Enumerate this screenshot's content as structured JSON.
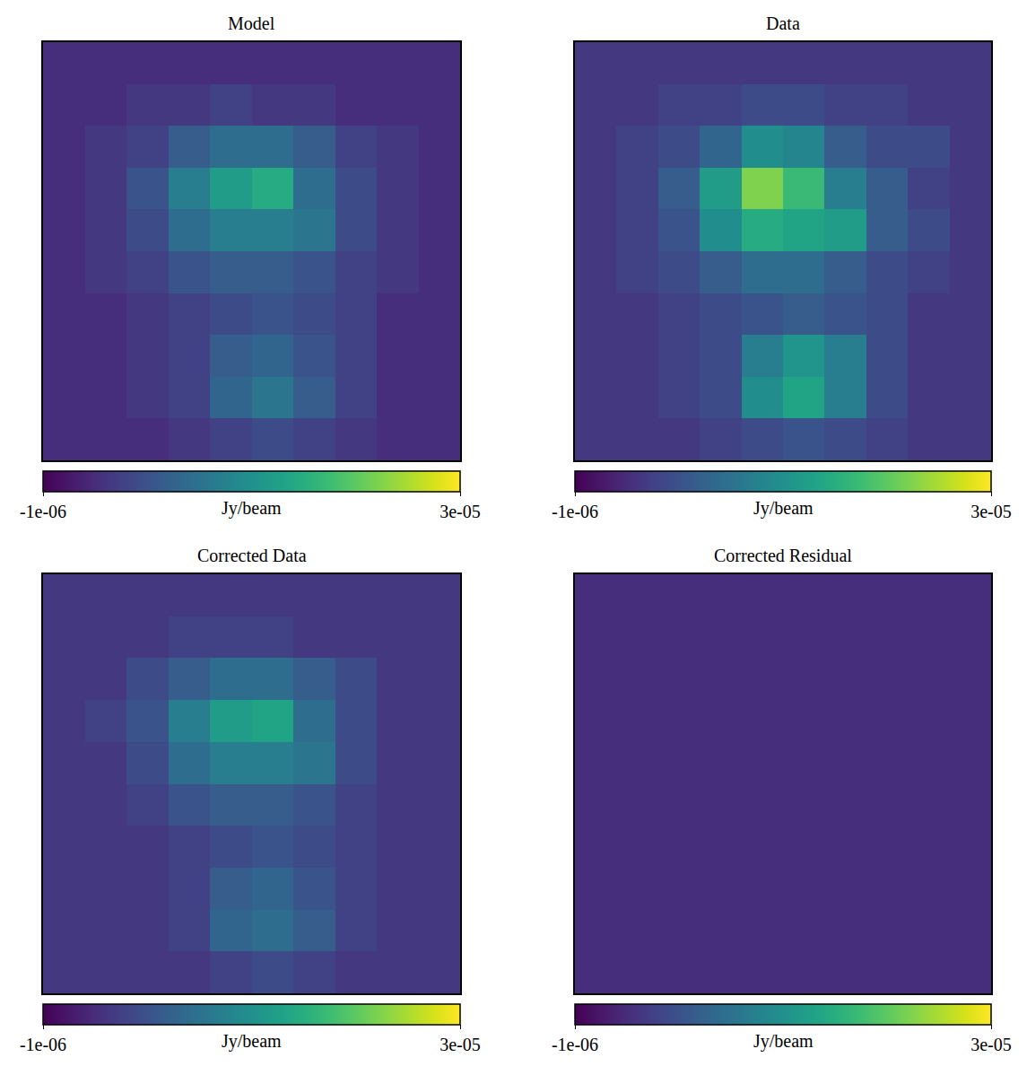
{
  "chart_data": [
    {
      "type": "heatmap",
      "title": "Model",
      "tick_labels": false,
      "zlim": [
        -1e-06,
        3e-05
      ],
      "zticks": [
        {
          "value": -1e-06,
          "label": "-1e-06"
        },
        {
          "value": 3e-05,
          "label": "3e-05"
        }
      ],
      "colorbar_label": "Jy/beam",
      "cells": [
        [
          3e-06,
          3e-06,
          3e-06,
          3e-06,
          3e-06,
          3e-06,
          3e-06,
          3e-06,
          3e-06,
          3e-06
        ],
        [
          3e-06,
          3e-06,
          4e-06,
          4e-06,
          5e-06,
          4e-06,
          4e-06,
          3e-06,
          3e-06,
          3e-06
        ],
        [
          3e-06,
          4e-06,
          5e-06,
          8e-06,
          1e-05,
          1e-05,
          8e-06,
          5e-06,
          4e-06,
          3e-06
        ],
        [
          3e-06,
          4e-06,
          7e-06,
          1.2e-05,
          1.6e-05,
          1.8e-05,
          1e-05,
          6e-06,
          4e-06,
          3e-06
        ],
        [
          3e-06,
          4e-06,
          6e-06,
          1e-05,
          1.2e-05,
          1.2e-05,
          1.1e-05,
          6e-06,
          4e-06,
          3e-06
        ],
        [
          3e-06,
          4e-06,
          5e-06,
          7e-06,
          8e-06,
          8e-06,
          7e-06,
          5e-06,
          4e-06,
          3e-06
        ],
        [
          3e-06,
          3e-06,
          4e-06,
          5e-06,
          6e-06,
          7e-06,
          6e-06,
          5e-06,
          3e-06,
          3e-06
        ],
        [
          3e-06,
          3e-06,
          4e-06,
          5e-06,
          8e-06,
          9e-06,
          7e-06,
          5e-06,
          3e-06,
          3e-06
        ],
        [
          3e-06,
          3e-06,
          4e-06,
          5e-06,
          9e-06,
          1.1e-05,
          8e-06,
          5e-06,
          3e-06,
          3e-06
        ],
        [
          3e-06,
          3e-06,
          3e-06,
          4e-06,
          5e-06,
          6e-06,
          5e-06,
          4e-06,
          3e-06,
          3e-06
        ]
      ]
    },
    {
      "type": "heatmap",
      "title": "Data",
      "tick_labels": false,
      "zlim": [
        -1e-06,
        3e-05
      ],
      "zticks": [
        {
          "value": -1e-06,
          "label": "-1e-06"
        },
        {
          "value": 3e-05,
          "label": "3e-05"
        }
      ],
      "colorbar_label": "Jy/beam",
      "cells": [
        [
          4e-06,
          4e-06,
          4e-06,
          4e-06,
          4e-06,
          4e-06,
          4e-06,
          4e-06,
          4e-06,
          4e-06
        ],
        [
          4e-06,
          4e-06,
          5e-06,
          5e-06,
          6e-06,
          6e-06,
          5e-06,
          5e-06,
          4e-06,
          4e-06
        ],
        [
          4e-06,
          5e-06,
          6e-06,
          9e-06,
          1.4e-05,
          1.3e-05,
          8e-06,
          6e-06,
          6e-06,
          4e-06
        ],
        [
          4e-06,
          5e-06,
          8e-06,
          1.6e-05,
          2.4e-05,
          2e-05,
          1.2e-05,
          8e-06,
          5e-06,
          4e-06
        ],
        [
          4e-06,
          5e-06,
          7e-06,
          1.4e-05,
          1.8e-05,
          1.7e-05,
          1.6e-05,
          8e-06,
          6e-06,
          4e-06
        ],
        [
          4e-06,
          5e-06,
          6e-06,
          8e-06,
          1e-05,
          1e-05,
          8e-06,
          6e-06,
          5e-06,
          4e-06
        ],
        [
          4e-06,
          4e-06,
          5e-06,
          6e-06,
          7e-06,
          8e-06,
          7e-06,
          6e-06,
          4e-06,
          4e-06
        ],
        [
          4e-06,
          4e-06,
          5e-06,
          6e-06,
          1.2e-05,
          1.5e-05,
          1.2e-05,
          6e-06,
          4e-06,
          4e-06
        ],
        [
          4e-06,
          4e-06,
          5e-06,
          6e-06,
          1.4e-05,
          1.7e-05,
          1.2e-05,
          6e-06,
          4e-06,
          4e-06
        ],
        [
          4e-06,
          4e-06,
          4e-06,
          5e-06,
          6e-06,
          7e-06,
          6e-06,
          5e-06,
          4e-06,
          4e-06
        ]
      ]
    },
    {
      "type": "heatmap",
      "title": "Corrected Data",
      "tick_labels": false,
      "zlim": [
        -1e-06,
        3e-05
      ],
      "zticks": [
        {
          "value": -1e-06,
          "label": "-1e-06"
        },
        {
          "value": 3e-05,
          "label": "3e-05"
        }
      ],
      "colorbar_label": "Jy/beam",
      "cells": [
        [
          4e-06,
          4e-06,
          4e-06,
          4e-06,
          4e-06,
          4e-06,
          4e-06,
          4e-06,
          4e-06,
          4e-06
        ],
        [
          4e-06,
          4e-06,
          4e-06,
          5e-06,
          5e-06,
          5e-06,
          4e-06,
          4e-06,
          4e-06,
          4e-06
        ],
        [
          4e-06,
          4e-06,
          6e-06,
          8e-06,
          1e-05,
          1e-05,
          8e-06,
          6e-06,
          4e-06,
          4e-06
        ],
        [
          4e-06,
          5e-06,
          7e-06,
          1.2e-05,
          1.6e-05,
          1.7e-05,
          1e-05,
          6e-06,
          4e-06,
          4e-06
        ],
        [
          4e-06,
          4e-06,
          6e-06,
          1e-05,
          1.2e-05,
          1.2e-05,
          1.1e-05,
          6e-06,
          4e-06,
          4e-06
        ],
        [
          4e-06,
          4e-06,
          5e-06,
          7e-06,
          8e-06,
          8e-06,
          7e-06,
          5e-06,
          4e-06,
          4e-06
        ],
        [
          4e-06,
          4e-06,
          4e-06,
          5e-06,
          6e-06,
          7e-06,
          6e-06,
          5e-06,
          4e-06,
          4e-06
        ],
        [
          4e-06,
          4e-06,
          4e-06,
          5e-06,
          8e-06,
          9e-06,
          7e-06,
          5e-06,
          4e-06,
          4e-06
        ],
        [
          4e-06,
          4e-06,
          4e-06,
          5e-06,
          9e-06,
          1e-05,
          8e-06,
          5e-06,
          4e-06,
          4e-06
        ],
        [
          4e-06,
          4e-06,
          4e-06,
          4e-06,
          5e-06,
          6e-06,
          5e-06,
          4e-06,
          4e-06,
          4e-06
        ]
      ]
    },
    {
      "type": "heatmap",
      "title": "Corrected Residual",
      "tick_labels": false,
      "zlim": [
        -1e-06,
        3e-05
      ],
      "zticks": [
        {
          "value": -1e-06,
          "label": "-1e-06"
        },
        {
          "value": 3e-05,
          "label": "3e-05"
        }
      ],
      "colorbar_label": "Jy/beam",
      "cells": [
        [
          3e-06,
          3e-06,
          3e-06,
          3e-06,
          3e-06,
          3e-06,
          3e-06,
          3e-06,
          3e-06,
          3e-06
        ],
        [
          3e-06,
          3e-06,
          3e-06,
          3e-06,
          3e-06,
          3e-06,
          3e-06,
          3e-06,
          3e-06,
          3e-06
        ],
        [
          3e-06,
          3e-06,
          3e-06,
          3e-06,
          3e-06,
          3e-06,
          3e-06,
          3e-06,
          3e-06,
          3e-06
        ],
        [
          3e-06,
          3e-06,
          3e-06,
          3e-06,
          3e-06,
          3e-06,
          3e-06,
          3e-06,
          3e-06,
          3e-06
        ],
        [
          3e-06,
          3e-06,
          3e-06,
          3e-06,
          3e-06,
          3e-06,
          3e-06,
          3e-06,
          3e-06,
          3e-06
        ],
        [
          3e-06,
          3e-06,
          3e-06,
          3e-06,
          3e-06,
          3e-06,
          3e-06,
          3e-06,
          3e-06,
          3e-06
        ],
        [
          3e-06,
          3e-06,
          3e-06,
          3e-06,
          3e-06,
          3e-06,
          3e-06,
          3e-06,
          3e-06,
          3e-06
        ],
        [
          3e-06,
          3e-06,
          3e-06,
          3e-06,
          3e-06,
          3e-06,
          3e-06,
          3e-06,
          3e-06,
          3e-06
        ],
        [
          3e-06,
          3e-06,
          3e-06,
          3e-06,
          3e-06,
          3e-06,
          3e-06,
          3e-06,
          3e-06,
          3e-06
        ],
        [
          3e-06,
          3e-06,
          3e-06,
          3e-06,
          3e-06,
          3e-06,
          3e-06,
          3e-06,
          3e-06,
          3e-06
        ]
      ]
    }
  ]
}
